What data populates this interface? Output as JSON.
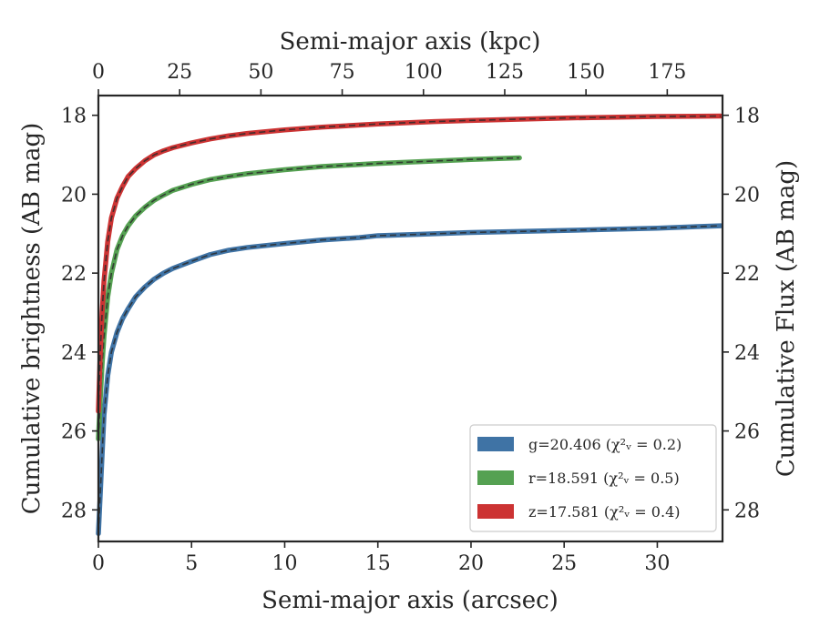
{
  "chart_data": {
    "type": "line",
    "xlabel": "Semi-major axis (arcsec)",
    "ylabel": "Cumulative brightness (AB mag)",
    "top_xlabel": "Semi-major axis (kpc)",
    "right_ylabel": "Cumulative Flux (AB mag)",
    "xlim": [
      0,
      33.5
    ],
    "ylim": [
      28.8,
      17.5
    ],
    "y_inverted": true,
    "top_xlim": [
      0,
      192
    ],
    "x_ticks": [
      "0",
      "5",
      "10",
      "15",
      "20",
      "25",
      "30"
    ],
    "top_x_ticks": [
      "0",
      "25",
      "50",
      "75",
      "100",
      "125",
      "150",
      "175"
    ],
    "y_ticks": [
      "18",
      "20",
      "22",
      "24",
      "26",
      "28"
    ],
    "legend_position": "lower-right",
    "grid": false,
    "series": [
      {
        "name": "g=20.406",
        "chi_label": "χ²ᵥ = 0.2",
        "color": "#3f73a5",
        "fit_color": "#2b2b2b",
        "x": [
          0.0,
          0.1,
          0.2,
          0.3,
          0.5,
          0.7,
          1.0,
          1.3,
          1.6,
          2.0,
          2.5,
          3.0,
          3.5,
          4.0,
          5.0,
          6.0,
          7.0,
          8.0,
          10.0,
          12.0,
          14.0,
          15.0,
          17.0,
          20.0,
          25.0,
          30.0,
          33.4
        ],
        "y": [
          28.6,
          27.6,
          26.6,
          25.6,
          24.6,
          24.0,
          23.5,
          23.15,
          22.9,
          22.6,
          22.35,
          22.15,
          22.0,
          21.88,
          21.7,
          21.53,
          21.42,
          21.35,
          21.25,
          21.16,
          21.1,
          21.05,
          21.02,
          20.97,
          20.92,
          20.86,
          20.8
        ],
        "width_scale": 1.0
      },
      {
        "name": "r=18.591",
        "chi_label": "χ²ᵥ = 0.5",
        "color": "#55a152",
        "fit_color": "#2b2b2b",
        "x": [
          0.0,
          0.1,
          0.2,
          0.3,
          0.5,
          0.7,
          1.0,
          1.3,
          1.6,
          2.0,
          2.5,
          3.0,
          3.5,
          4.0,
          5.0,
          6.0,
          7.0,
          8.0,
          10.0,
          12.0,
          15.0,
          18.0,
          20.0,
          22.6
        ],
        "y": [
          26.2,
          25.2,
          24.3,
          23.6,
          22.6,
          22.0,
          21.4,
          21.05,
          20.8,
          20.55,
          20.33,
          20.15,
          20.02,
          19.9,
          19.75,
          19.63,
          19.55,
          19.48,
          19.38,
          19.3,
          19.22,
          19.16,
          19.12,
          19.08
        ],
        "width_scale": 1.0
      },
      {
        "name": "z=17.581",
        "chi_label": "χ²ᵥ = 0.4",
        "color": "#cc3333",
        "fit_color": "#2b2b2b",
        "x": [
          0.0,
          0.1,
          0.2,
          0.3,
          0.5,
          0.7,
          1.0,
          1.3,
          1.6,
          2.0,
          2.5,
          3.0,
          3.5,
          4.0,
          5.0,
          6.0,
          7.0,
          8.0,
          10.0,
          12.0,
          15.0,
          18.0,
          20.0,
          25.0,
          30.0,
          33.4
        ],
        "y": [
          25.5,
          24.0,
          23.0,
          22.2,
          21.2,
          20.6,
          20.1,
          19.8,
          19.55,
          19.35,
          19.15,
          19.0,
          18.9,
          18.82,
          18.7,
          18.6,
          18.52,
          18.46,
          18.37,
          18.3,
          18.22,
          18.16,
          18.13,
          18.07,
          18.03,
          18.02
        ],
        "width_scale": 1.0
      }
    ]
  }
}
